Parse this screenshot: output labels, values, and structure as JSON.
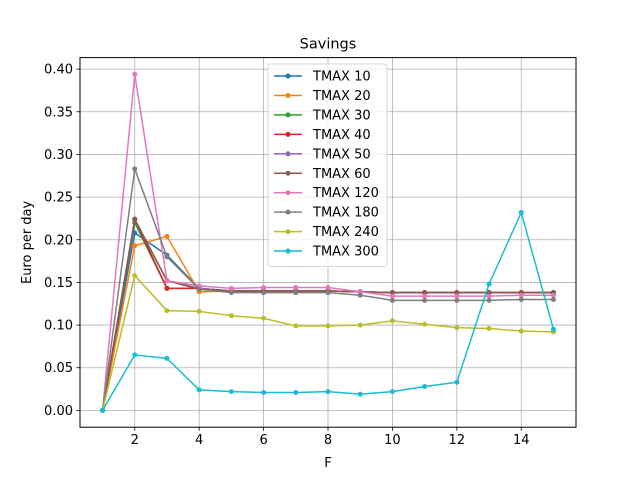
{
  "chart_data": {
    "type": "line",
    "title": "Savings",
    "xlabel": "F",
    "ylabel": "Euro per day",
    "xlim": [
      0.3,
      15.7
    ],
    "ylim": [
      -0.0197,
      0.4135
    ],
    "xticks": [
      2,
      4,
      6,
      8,
      10,
      12,
      14
    ],
    "xtick_labels": [
      "2",
      "4",
      "6",
      "8",
      "10",
      "12",
      "14"
    ],
    "yticks": [
      0.0,
      0.05,
      0.1,
      0.15,
      0.2,
      0.25,
      0.3,
      0.35,
      0.4
    ],
    "ytick_labels": [
      "0.00",
      "0.05",
      "0.10",
      "0.15",
      "0.20",
      "0.25",
      "0.30",
      "0.35",
      "0.40"
    ],
    "grid": true,
    "legend_position": "top-center",
    "x": [
      1,
      2,
      3,
      4,
      5,
      6,
      7,
      8,
      9,
      10,
      11,
      12,
      13,
      14,
      15
    ],
    "series": [
      {
        "name": "TMAX 10",
        "color": "#1f77b4",
        "values": [
          0.0,
          0.208,
          0.182,
          0.143,
          0.14,
          0.14,
          0.14,
          0.14,
          0.139,
          0.138,
          0.138,
          0.138,
          0.138,
          0.138,
          0.138
        ]
      },
      {
        "name": "TMAX 20",
        "color": "#ff7f0e",
        "values": [
          0.0,
          0.193,
          0.204,
          0.139,
          0.14,
          0.14,
          0.14,
          0.14,
          0.139,
          0.138,
          0.138,
          0.138,
          0.138,
          0.138,
          0.138
        ]
      },
      {
        "name": "TMAX 30",
        "color": "#2ca02c",
        "values": [
          0.0,
          0.22,
          0.143,
          0.143,
          0.14,
          0.14,
          0.14,
          0.14,
          0.139,
          0.138,
          0.138,
          0.138,
          0.138,
          0.138,
          0.138
        ]
      },
      {
        "name": "TMAX 40",
        "color": "#d62728",
        "values": [
          0.0,
          0.224,
          0.143,
          0.143,
          0.14,
          0.14,
          0.14,
          0.14,
          0.139,
          0.138,
          0.138,
          0.138,
          0.138,
          0.138,
          0.138
        ]
      },
      {
        "name": "TMAX 50",
        "color": "#9467bd",
        "values": [
          0.0,
          0.224,
          0.152,
          0.143,
          0.14,
          0.14,
          0.14,
          0.14,
          0.139,
          0.138,
          0.138,
          0.138,
          0.138,
          0.138,
          0.138
        ]
      },
      {
        "name": "TMAX 60",
        "color": "#8c564b",
        "values": [
          0.0,
          0.224,
          0.152,
          0.142,
          0.14,
          0.14,
          0.14,
          0.14,
          0.139,
          0.138,
          0.138,
          0.138,
          0.138,
          0.138,
          0.138
        ]
      },
      {
        "name": "TMAX 120",
        "color": "#e377c2",
        "values": [
          0.0,
          0.394,
          0.152,
          0.146,
          0.143,
          0.144,
          0.144,
          0.144,
          0.139,
          0.134,
          0.134,
          0.134,
          0.134,
          0.135,
          0.135
        ]
      },
      {
        "name": "TMAX 180",
        "color": "#7f7f7f",
        "values": [
          0.0,
          0.283,
          0.18,
          0.142,
          0.138,
          0.138,
          0.138,
          0.138,
          0.135,
          0.129,
          0.129,
          0.129,
          0.129,
          0.13,
          0.13
        ]
      },
      {
        "name": "TMAX 240",
        "color": "#bcbd22",
        "values": [
          0.0,
          0.158,
          0.117,
          0.116,
          0.111,
          0.108,
          0.099,
          0.099,
          0.1,
          0.105,
          0.101,
          0.097,
          0.096,
          0.093,
          0.092
        ]
      },
      {
        "name": "TMAX 300",
        "color": "#17becf",
        "values": [
          0.0,
          0.065,
          0.061,
          0.024,
          0.022,
          0.021,
          0.021,
          0.022,
          0.019,
          0.022,
          0.028,
          0.033,
          0.148,
          0.232,
          0.095
        ]
      }
    ]
  }
}
